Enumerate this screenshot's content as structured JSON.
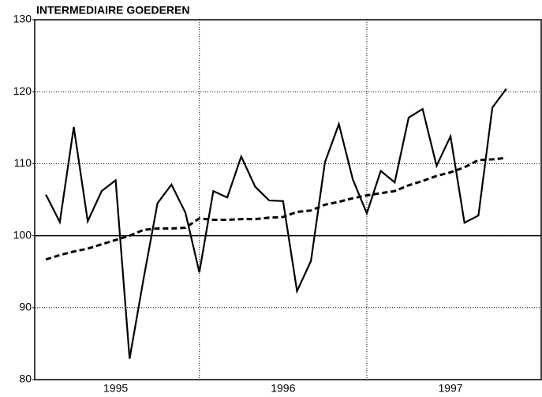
{
  "chart_data": {
    "type": "line",
    "title": "INTERMEDIAIRE GOEDEREN",
    "x": [
      0,
      1,
      2,
      3,
      4,
      5,
      6,
      7,
      8,
      9,
      10,
      11,
      12,
      13,
      14,
      15,
      16,
      17,
      18,
      19,
      20,
      21,
      22,
      23,
      24,
      25,
      26,
      27,
      28,
      29,
      30,
      31,
      32,
      33
    ],
    "series": [
      {
        "color": "#000000",
        "dash": false,
        "values": [
          105.7,
          101.9,
          115.1,
          102,
          106.2,
          107.7,
          82.9,
          94,
          104.5,
          107.1,
          103.2,
          94.9,
          106.2,
          105.3,
          111,
          106.8,
          104.9,
          104.8,
          92.3,
          96.5,
          110.2,
          115.5,
          107.8,
          103.1,
          109,
          107.4,
          116.4,
          117.6,
          109.7,
          113.8,
          101.8,
          102.8,
          117.8,
          120.4
        ]
      },
      {
        "color": "#000000",
        "dash": true,
        "values": [
          96.7,
          97.3,
          97.8,
          98.2,
          98.8,
          99.4,
          100,
          100.8,
          101,
          101,
          101.1,
          102.4,
          102.2,
          102.2,
          102.3,
          102.3,
          102.5,
          102.6,
          103.3,
          103.5,
          104.3,
          104.7,
          105.2,
          105.6,
          105.9,
          106.2,
          107,
          107.6,
          108.3,
          108.8,
          109.5,
          110.5,
          110.6,
          110.8
        ]
      }
    ],
    "xlim": [
      -0.8,
      35.5
    ],
    "xticks": [
      {
        "value": 5,
        "label": "1995"
      },
      {
        "value": 17,
        "label": "1996"
      },
      {
        "value": 29,
        "label": "1997"
      }
    ],
    "x_grid": [
      11,
      23
    ],
    "ylim": [
      80,
      130
    ],
    "yticks": [
      80,
      90,
      100,
      110,
      120,
      130
    ],
    "reference": 100,
    "grid": true
  }
}
